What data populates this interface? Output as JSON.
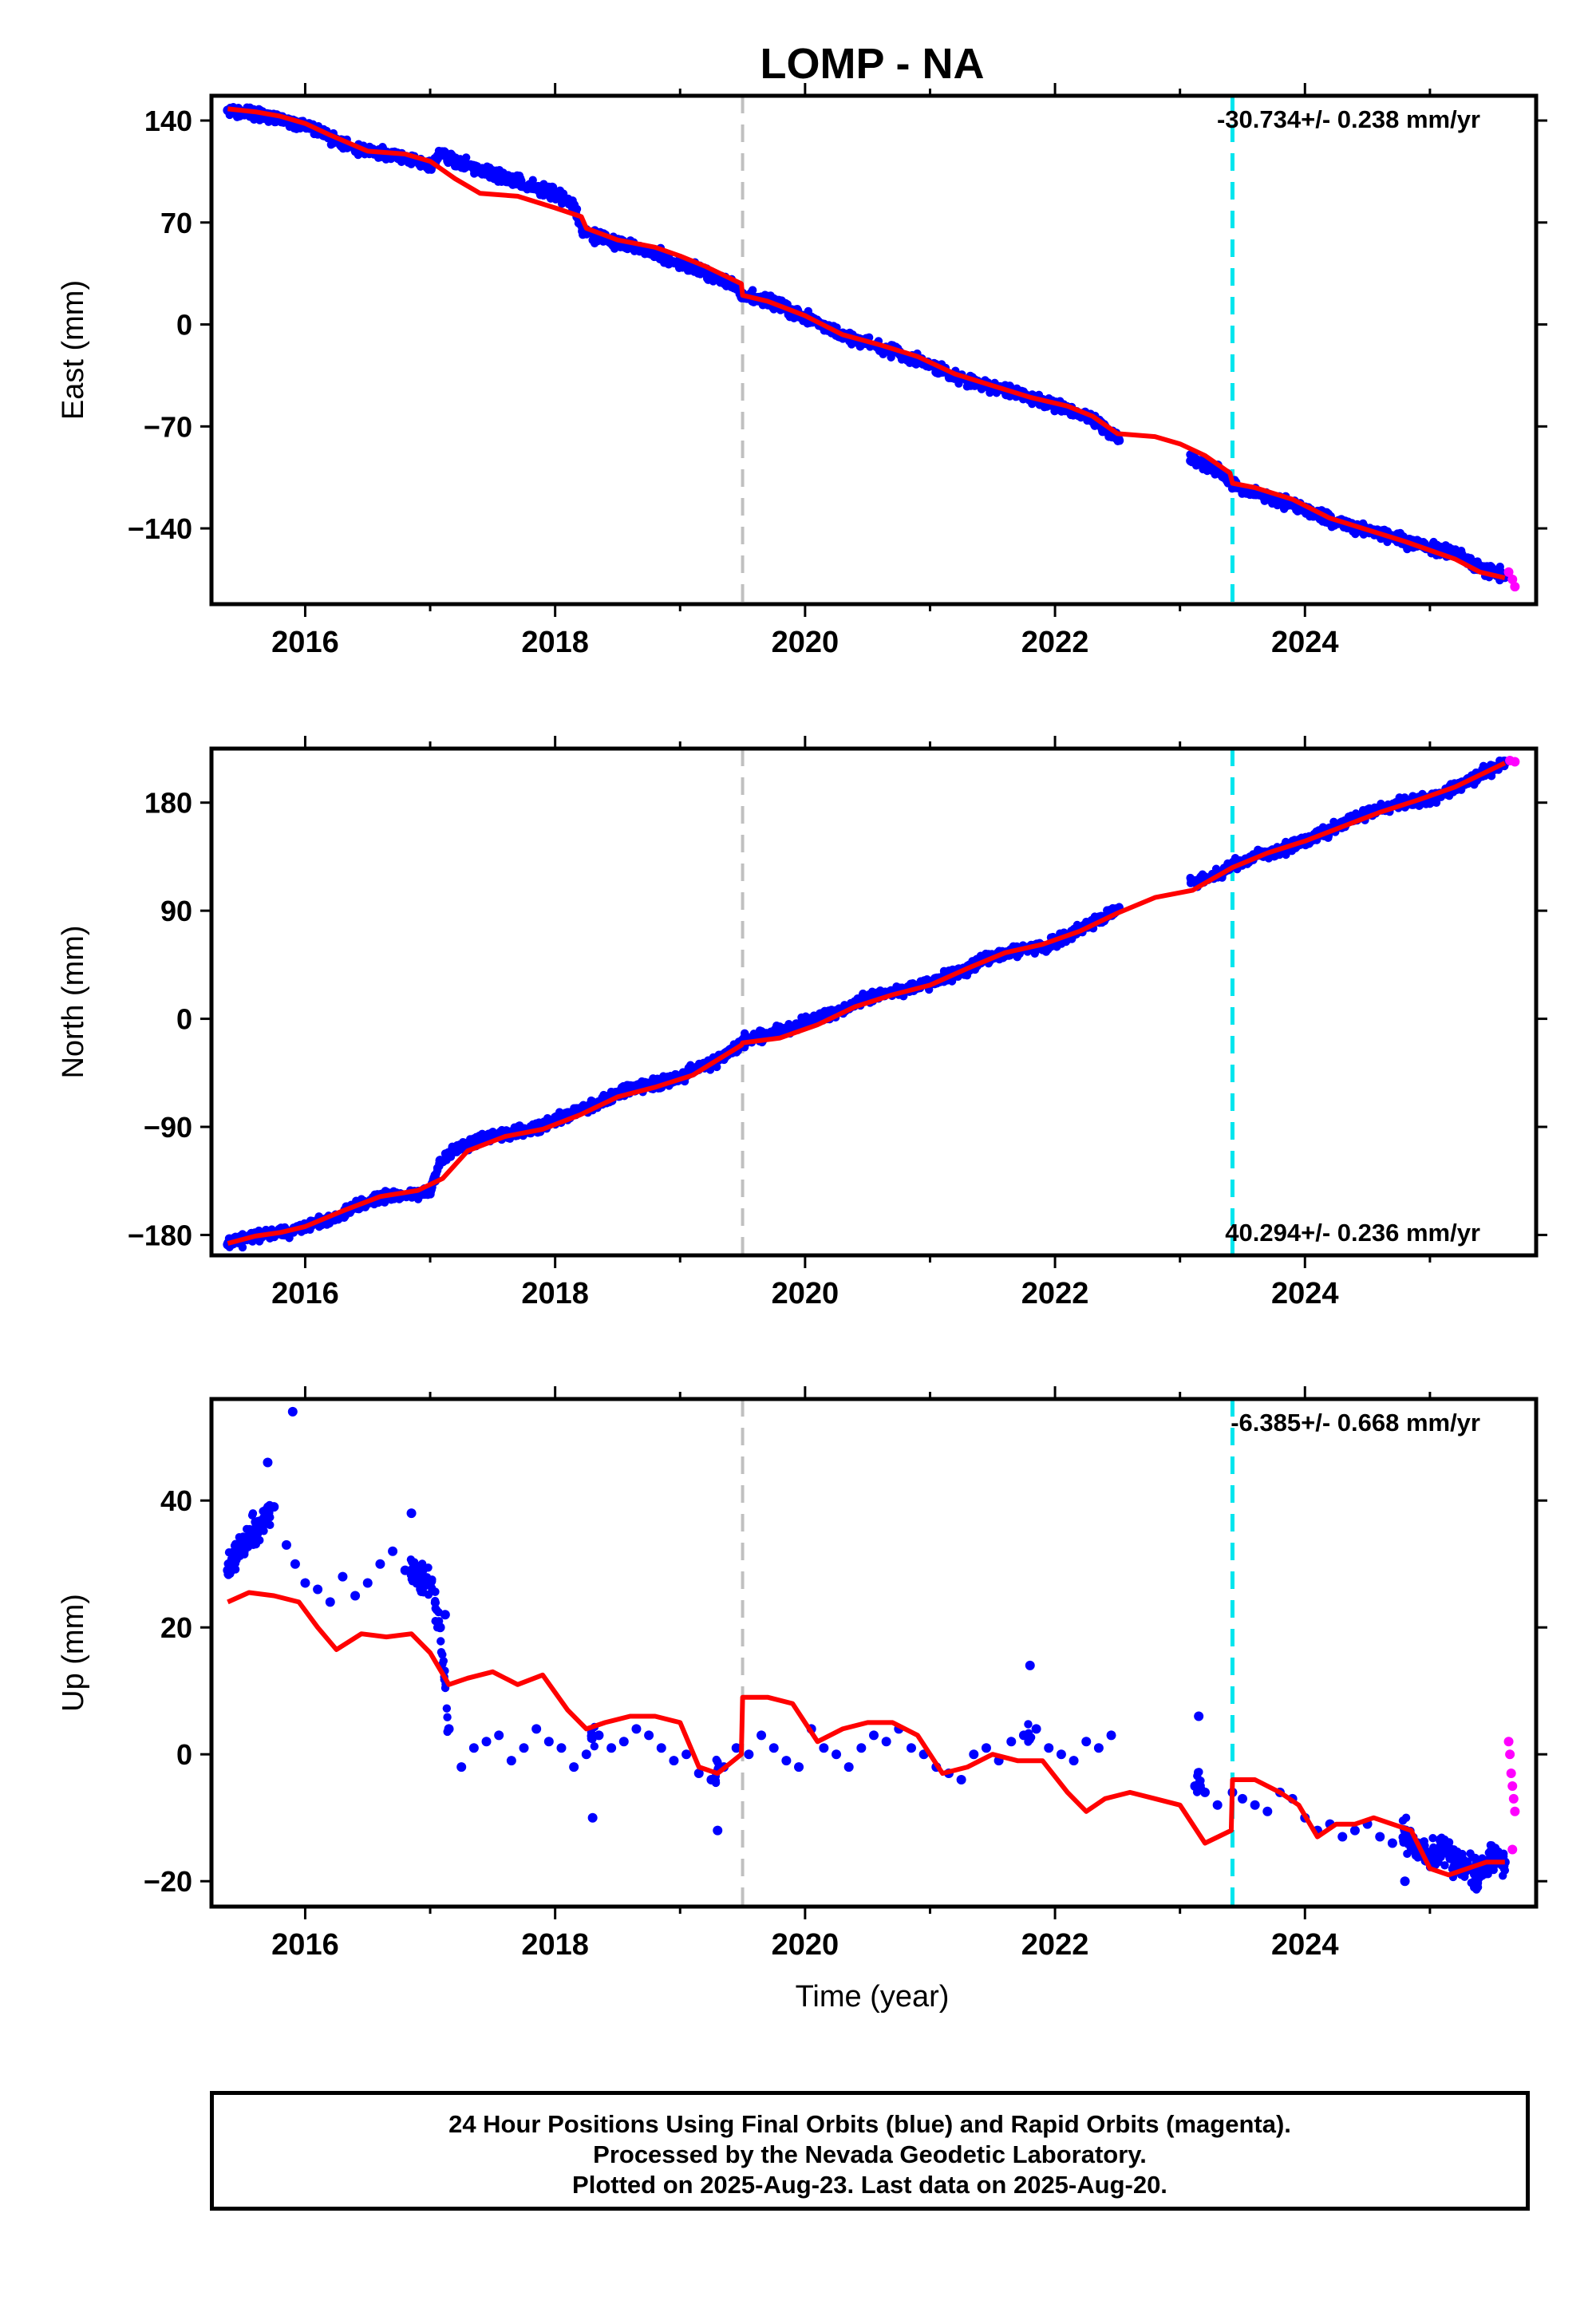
{
  "title": "LOMP - NA",
  "xlabel": "Time (year)",
  "footer": [
    "24 Hour Positions Using Final Orbits (blue) and Rapid Orbits (magenta).",
    "Processed by the Nevada Geodetic Laboratory.",
    "Plotted on 2025-Aug-23. Last data on 2025-Aug-20."
  ],
  "colors": {
    "final": "#0000ff",
    "rapid": "#ff00ff",
    "model": "#ff0000",
    "event_gray": "#c0c0c0",
    "event_cyan": "#00e5ee"
  },
  "events": [
    {
      "x": 2019.5,
      "color": "gray"
    },
    {
      "x": 2023.42,
      "color": "cyan"
    }
  ],
  "chart_data": [
    {
      "type": "scatter",
      "ylabel": "East (mm)",
      "rate": "-30.734+/- 0.238 mm/yr",
      "rate_pos": "top-right",
      "xlim": [
        2015.25,
        2025.85
      ],
      "ylim": [
        -192,
        157
      ],
      "xticks": [
        2016,
        2018,
        2020,
        2022,
        2024
      ],
      "yticks": [
        140,
        70,
        0,
        -70,
        -140
      ],
      "ytick_labels": [
        "140",
        "70",
        "0",
        "−70",
        "−140"
      ],
      "final": {
        "x": [
          2015.38,
          2015.6,
          2015.8,
          2016.0,
          2016.2,
          2016.4,
          2016.6,
          2016.8,
          2017.0,
          2017.08,
          2017.2,
          2017.4,
          2017.6,
          2017.8,
          2018.0,
          2018.15,
          2018.22,
          2018.4,
          2018.6,
          2018.8,
          2019.0,
          2019.2,
          2019.4,
          2019.5,
          2019.7,
          2019.9,
          2020.1,
          2020.3,
          2020.5,
          2020.7,
          2020.9,
          2021.1,
          2021.3,
          2021.5,
          2021.7,
          2021.9,
          2022.1,
          2022.3,
          2022.5,
          2023.1,
          2023.3,
          2023.42,
          2023.6,
          2023.8,
          2024.0,
          2024.2,
          2024.4,
          2024.6,
          2024.8,
          2025.0,
          2025.2,
          2025.4,
          2025.6
        ],
        "y": [
          147,
          145,
          141,
          137,
          128,
          120,
          118,
          115,
          108,
          118,
          112,
          106,
          101,
          95,
          90,
          82,
          64,
          58,
          54,
          49,
          42,
          36,
          28,
          20,
          16,
          9,
          2,
          -8,
          -13,
          -18,
          -25,
          -32,
          -38,
          -43,
          -47,
          -53,
          -58,
          -65,
          -78,
          -93,
          -100,
          -110,
          -116,
          -121,
          -127,
          -134,
          -139,
          -144,
          -149,
          -153,
          -157,
          -167,
          -172
        ]
      },
      "rapid": {
        "x": [
          2025.63,
          2025.66,
          2025.68
        ],
        "y": [
          -170,
          -175,
          -180
        ]
      },
      "model": {
        "x": [
          2015.38,
          2015.6,
          2015.8,
          2016.0,
          2016.2,
          2016.5,
          2016.8,
          2017.0,
          2017.2,
          2017.4,
          2017.7,
          2018.0,
          2018.21,
          2018.25,
          2018.5,
          2018.8,
          2019.0,
          2019.2,
          2019.49,
          2019.5,
          2019.7,
          2020.0,
          2020.3,
          2020.6,
          2020.9,
          2021.2,
          2021.5,
          2021.8,
          2022.1,
          2022.3,
          2022.5,
          2022.8,
          2023.0,
          2023.2,
          2023.4,
          2023.42,
          2023.6,
          2023.9,
          2024.2,
          2024.5,
          2024.8,
          2025.0,
          2025.2,
          2025.4,
          2025.6
        ],
        "y": [
          148,
          146,
          143,
          138,
          130,
          119,
          117,
          112,
          100,
          90,
          88,
          80,
          74,
          66,
          58,
          53,
          47,
          40,
          28,
          20,
          16,
          6,
          -7,
          -14,
          -22,
          -34,
          -42,
          -50,
          -56,
          -63,
          -75,
          -77,
          -82,
          -90,
          -102,
          -109,
          -112,
          -120,
          -133,
          -141,
          -149,
          -155,
          -161,
          -170,
          -174
        ]
      }
    },
    {
      "type": "scatter",
      "ylabel": "North (mm)",
      "rate": "40.294+/- 0.236 mm/yr",
      "rate_pos": "bottom-right",
      "xlim": [
        2015.25,
        2025.85
      ],
      "ylim": [
        -197,
        225
      ],
      "xticks": [
        2016,
        2018,
        2020,
        2022,
        2024
      ],
      "yticks": [
        180,
        90,
        0,
        -90,
        -180
      ],
      "ytick_labels": [
        "180",
        "90",
        "0",
        "−90",
        "−180"
      ],
      "final": {
        "x": [
          2015.38,
          2015.6,
          2015.8,
          2016.0,
          2016.2,
          2016.4,
          2016.6,
          2016.8,
          2017.0,
          2017.08,
          2017.2,
          2017.4,
          2017.6,
          2017.8,
          2018.0,
          2018.2,
          2018.4,
          2018.6,
          2018.8,
          2019.0,
          2019.2,
          2019.4,
          2019.5,
          2019.7,
          2019.9,
          2020.1,
          2020.3,
          2020.5,
          2020.7,
          2020.9,
          2021.1,
          2021.3,
          2021.5,
          2021.7,
          2021.9,
          2022.1,
          2022.3,
          2022.5,
          2023.1,
          2023.3,
          2023.42,
          2023.6,
          2023.8,
          2024.0,
          2024.2,
          2024.4,
          2024.6,
          2024.8,
          2025.0,
          2025.2,
          2025.4,
          2025.6
        ],
        "y": [
          -188,
          -181,
          -178,
          -174,
          -167,
          -157,
          -148,
          -147,
          -144,
          -118,
          -109,
          -100,
          -96,
          -92,
          -85,
          -76,
          -68,
          -58,
          -54,
          -48,
          -39,
          -28,
          -18,
          -13,
          -8,
          0,
          8,
          18,
          22,
          26,
          34,
          42,
          52,
          57,
          60,
          68,
          80,
          91,
          114,
          120,
          127,
          136,
          140,
          148,
          157,
          166,
          175,
          180,
          183,
          192,
          203,
          213
        ]
      },
      "rapid": {
        "x": [
          2025.64,
          2025.68
        ],
        "y": [
          215,
          214
        ]
      },
      "model": {
        "x": [
          2015.38,
          2015.6,
          2015.8,
          2016.0,
          2016.3,
          2016.6,
          2016.9,
          2017.1,
          2017.3,
          2017.6,
          2017.9,
          2018.2,
          2018.5,
          2018.8,
          2019.1,
          2019.49,
          2019.5,
          2019.8,
          2020.1,
          2020.4,
          2020.7,
          2021.0,
          2021.3,
          2021.6,
          2021.9,
          2022.2,
          2022.5,
          2022.8,
          2023.1,
          2023.42,
          2023.7,
          2024.0,
          2024.3,
          2024.6,
          2024.9,
          2025.2,
          2025.6
        ],
        "y": [
          -187,
          -181,
          -178,
          -173,
          -160,
          -148,
          -143,
          -133,
          -110,
          -98,
          -92,
          -80,
          -65,
          -57,
          -47,
          -22,
          -20,
          -16,
          -5,
          10,
          20,
          28,
          42,
          55,
          62,
          73,
          88,
          101,
          107,
          126,
          138,
          148,
          160,
          172,
          182,
          193,
          213
        ]
      }
    },
    {
      "type": "scatter",
      "ylabel": "Up (mm)",
      "rate": "-6.385+/- 0.668 mm/yr",
      "rate_pos": "top-right",
      "xlim": [
        2015.25,
        2025.85
      ],
      "ylim": [
        -24,
        56
      ],
      "xticks": [
        2016,
        2018,
        2020,
        2022,
        2024
      ],
      "xtick_labels": [
        "2016",
        "2018",
        "2020",
        "2022",
        "2024"
      ],
      "yticks": [
        40,
        20,
        0,
        -20
      ],
      "ytick_labels": [
        "40",
        "20",
        "0",
        "−20"
      ],
      "final": {
        "x": [
          2015.38,
          2015.45,
          2015.55,
          2015.65,
          2015.75,
          2015.85,
          2015.92,
          2016.0,
          2016.1,
          2016.2,
          2016.3,
          2016.4,
          2016.5,
          2016.6,
          2016.7,
          2016.8,
          2016.9,
          2017.0,
          2017.08,
          2017.15,
          2017.25,
          2017.35,
          2017.45,
          2017.55,
          2017.65,
          2017.75,
          2017.85,
          2017.95,
          2018.05,
          2018.15,
          2018.25,
          2018.35,
          2018.45,
          2018.55,
          2018.65,
          2018.75,
          2018.85,
          2018.95,
          2019.05,
          2019.15,
          2019.25,
          2019.35,
          2019.45,
          2019.55,
          2019.65,
          2019.75,
          2019.85,
          2019.95,
          2020.05,
          2020.15,
          2020.25,
          2020.35,
          2020.45,
          2020.55,
          2020.65,
          2020.75,
          2020.85,
          2020.95,
          2021.05,
          2021.15,
          2021.25,
          2021.35,
          2021.45,
          2021.55,
          2021.65,
          2021.75,
          2021.85,
          2021.95,
          2022.05,
          2022.15,
          2022.25,
          2022.35,
          2022.45,
          2023.12,
          2023.2,
          2023.3,
          2023.42,
          2023.5,
          2023.6,
          2023.7,
          2023.8,
          2023.9,
          2024.0,
          2024.1,
          2024.2,
          2024.3,
          2024.4,
          2024.5,
          2024.6,
          2024.7,
          2024.8,
          2024.9,
          2025.0,
          2025.1,
          2025.2,
          2025.3,
          2025.4,
          2025.5,
          2025.6,
          2015.9,
          2015.7,
          2016.85,
          2017.12,
          2018.3,
          2019.3,
          2021.8,
          2023.15,
          2024.8
        ],
        "y": [
          29,
          31,
          34,
          36,
          39,
          33,
          30,
          27,
          26,
          24,
          28,
          25,
          27,
          30,
          32,
          29,
          28,
          27,
          20,
          4,
          -2,
          1,
          2,
          3,
          -1,
          1,
          4,
          2,
          1,
          -2,
          0,
          3,
          1,
          2,
          4,
          3,
          1,
          -1,
          0,
          -3,
          -4,
          -2,
          1,
          0,
          3,
          1,
          -1,
          -2,
          4,
          1,
          0,
          -2,
          1,
          3,
          2,
          4,
          1,
          0,
          -2,
          -3,
          -4,
          0,
          1,
          -1,
          2,
          3,
          4,
          1,
          0,
          -1,
          2,
          1,
          3,
          -5,
          -6,
          -8,
          -6,
          -7,
          -8,
          -9,
          -6,
          -7,
          -10,
          -12,
          -11,
          -13,
          -12,
          -11,
          -13,
          -14,
          -12,
          -15,
          -16,
          -14,
          -17,
          -18,
          -19,
          -16,
          -17,
          54,
          46,
          38,
          22,
          -10,
          -12,
          14,
          6,
          -20
        ]
      },
      "rapid": {
        "x": [
          2025.63,
          2025.64,
          2025.65,
          2025.66,
          2025.67,
          2025.68,
          2025.66
        ],
        "y": [
          2,
          0,
          -3,
          -5,
          -7,
          -9,
          -15
        ]
      },
      "model": {
        "x": [
          2015.38,
          2015.55,
          2015.75,
          2015.95,
          2016.1,
          2016.25,
          2016.45,
          2016.65,
          2016.85,
          2017.0,
          2017.15,
          2017.3,
          2017.5,
          2017.7,
          2017.9,
          2018.1,
          2018.25,
          2018.4,
          2018.6,
          2018.8,
          2019.0,
          2019.15,
          2019.3,
          2019.49,
          2019.5,
          2019.7,
          2019.9,
          2020.1,
          2020.3,
          2020.5,
          2020.7,
          2020.9,
          2021.1,
          2021.3,
          2021.5,
          2021.7,
          2021.9,
          2022.1,
          2022.25,
          2022.4,
          2022.6,
          2022.8,
          2023.0,
          2023.2,
          2023.41,
          2023.42,
          2023.6,
          2023.8,
          2023.95,
          2024.1,
          2024.25,
          2024.4,
          2024.55,
          2024.7,
          2024.85,
          2025.0,
          2025.15,
          2025.3,
          2025.45,
          2025.6
        ],
        "y": [
          24,
          25.5,
          25,
          24,
          20,
          16.5,
          19,
          18.5,
          19,
          16,
          11,
          12,
          13,
          11,
          12.5,
          7,
          4,
          5,
          6,
          6,
          5,
          -2,
          -3,
          0,
          9,
          9,
          8,
          2,
          4,
          5,
          5,
          3,
          -3,
          -2,
          0,
          -1,
          -1,
          -6,
          -9,
          -7,
          -6,
          -7,
          -8,
          -14,
          -12,
          -4,
          -4,
          -6,
          -8,
          -13,
          -11,
          -11,
          -10,
          -11,
          -12,
          -18,
          -19,
          -18,
          -17,
          -17
        ]
      }
    }
  ]
}
